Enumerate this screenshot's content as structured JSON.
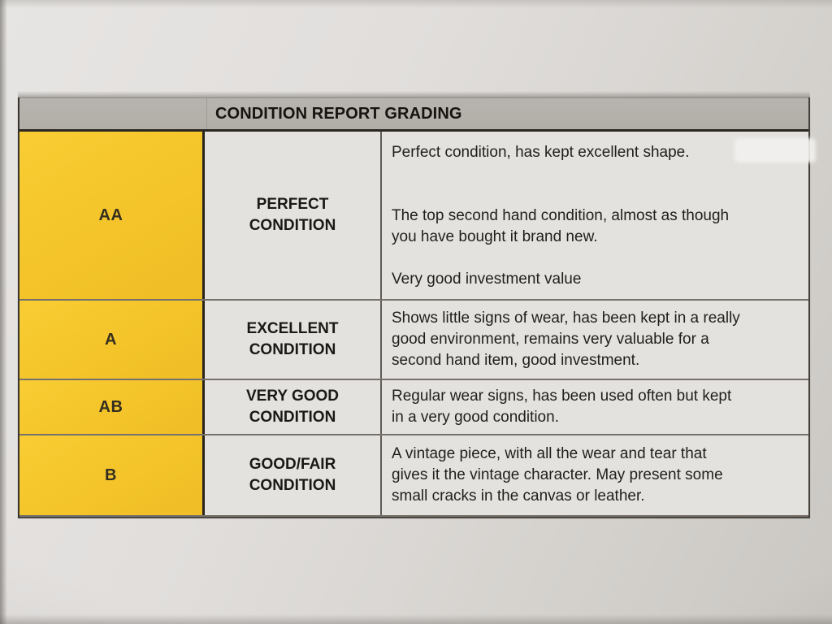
{
  "document_type": "photographed printed grading table",
  "table": {
    "header": {
      "title": "CONDITION REPORT GRADING"
    },
    "rows": [
      {
        "grade": "AA",
        "condition": "PERFECT\nCONDITION",
        "description": "Perfect condition, has kept excellent shape.\n\n\nThe top second hand condition, almost as though\nyou have bought it brand new.\n\nVery good investment value"
      },
      {
        "grade": "A",
        "condition": "EXCELLENT\nCONDITION",
        "description": "Shows little signs of wear, has been kept in a really\ngood environment, remains very valuable for a\nsecond hand item, good investment."
      },
      {
        "grade": "AB",
        "condition": "VERY GOOD\nCONDITION",
        "description": "Regular wear signs, has been used often but kept\nin a very good condition."
      },
      {
        "grade": "B",
        "condition": "GOOD/FAIR\nCONDITION",
        "description": "A vintage piece, with all the wear and tear that\ngives it the vintage character. May present some\nsmall cracks in the canvas or leather."
      }
    ],
    "colors": {
      "grade_column_yellow": "#f4c42a",
      "header_bar_gray": "#b3afa9",
      "cell_background": "#e4e2df",
      "paper": "#dcd9d6",
      "text": "#1b1916",
      "dark_border": "#26231d"
    }
  }
}
